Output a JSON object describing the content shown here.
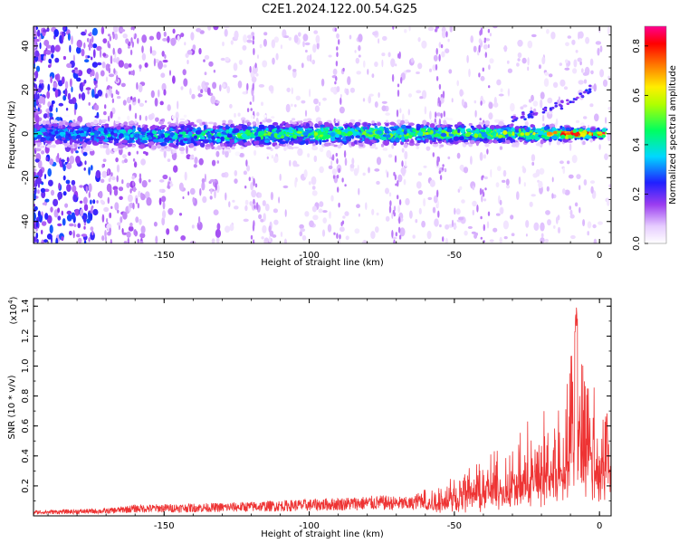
{
  "figure": {
    "title": "C2E1.2024.122.00.54.G25"
  },
  "chart_data": [
    {
      "type": "heatmap",
      "xlabel": "Height of straight line (km)",
      "ylabel": "Frequency (Hz)",
      "xlim": [
        -195,
        4
      ],
      "ylim": [
        -50,
        49
      ],
      "xticks": [
        -150,
        -100,
        -50,
        0
      ],
      "yticks": [
        -40,
        -20,
        0,
        20,
        40
      ],
      "colorbar": {
        "label": "Normalized spectral amplitude",
        "range": [
          0.0,
          0.88
        ],
        "ticks": [
          0.0,
          0.2,
          0.4,
          0.6,
          0.8
        ],
        "colormap": "rainbow (white-lavender-violet-blue-cyan-green-yellow-red-magenta)"
      },
      "ridge": {
        "description": "main Doppler band near 0 Hz across all heights",
        "center_hz": [
          [
            -190,
            0
          ],
          [
            -150,
            -1
          ],
          [
            -100,
            0
          ],
          [
            -50,
            0
          ],
          [
            -10,
            0
          ],
          [
            0,
            0
          ]
        ],
        "half_width_hz": [
          [
            -190,
            7
          ],
          [
            -150,
            8
          ],
          [
            -100,
            7
          ],
          [
            -50,
            6
          ],
          [
            -20,
            5
          ],
          [
            0,
            3
          ]
        ],
        "peak_amplitude": [
          [
            -190,
            0.35
          ],
          [
            -150,
            0.4
          ],
          [
            -100,
            0.5
          ],
          [
            -60,
            0.5
          ],
          [
            -20,
            0.55
          ],
          [
            -10,
            0.8
          ],
          [
            0,
            0.75
          ]
        ]
      },
      "branch": {
        "description": "weak branch rising to positive frequency near the end",
        "points": [
          [
            -30,
            7
          ],
          [
            -20,
            10
          ],
          [
            -10,
            15
          ],
          [
            -3,
            20
          ]
        ]
      }
    },
    {
      "type": "line",
      "xlabel": "Height of straight line (km)",
      "ylabel": "SNR (10 * v/v)",
      "multiplier": "(x10",
      "multiplier_exp": "4",
      "multiplier_close": ")",
      "xlim": [
        -195,
        4
      ],
      "ylim": [
        0,
        1.45
      ],
      "xticks": [
        -150,
        -100,
        -50,
        0
      ],
      "yticks": [
        0.2,
        0.4,
        0.6,
        0.8,
        1.0,
        1.2,
        1.4
      ],
      "color": "#ee3333",
      "envelope": [
        [
          -195,
          0.03
        ],
        [
          -170,
          0.04
        ],
        [
          -160,
          0.06
        ],
        [
          -130,
          0.07
        ],
        [
          -100,
          0.09
        ],
        [
          -75,
          0.11
        ],
        [
          -65,
          0.1
        ],
        [
          -55,
          0.2
        ],
        [
          -45,
          0.28
        ],
        [
          -35,
          0.35
        ],
        [
          -25,
          0.45
        ],
        [
          -18,
          0.58
        ],
        [
          -12,
          0.68
        ],
        [
          -8,
          1.4
        ],
        [
          -5,
          0.95
        ],
        [
          -2,
          0.85
        ],
        [
          0,
          0.65
        ],
        [
          4,
          0.7
        ]
      ]
    }
  ]
}
